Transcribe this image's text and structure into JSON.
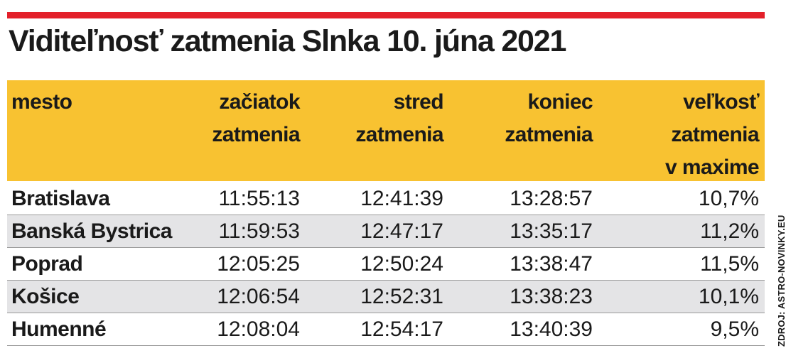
{
  "title": "Viditeľnosť zatmenia Slnka 10. júna 2021",
  "table": {
    "header": [
      [
        "mesto"
      ],
      [
        "začiatok",
        "zatmenia"
      ],
      [
        "stred",
        "zatmenia"
      ],
      [
        "koniec",
        "zatmenia"
      ],
      [
        "veľkosť",
        "zatmenia",
        "v maxime"
      ]
    ],
    "rows": [
      [
        "Bratislava",
        "11:55:13",
        "12:41:39",
        "13:28:57",
        "10,7%"
      ],
      [
        "Banská Bystrica",
        "11:59:53",
        "12:47:17",
        "13:35:17",
        "11,2%"
      ],
      [
        "Poprad",
        "12:05:25",
        "12:50:24",
        "13:38:47",
        "11,5%"
      ],
      [
        "Košice",
        "12:06:54",
        "12:52:31",
        "13:38:23",
        "10,1%"
      ],
      [
        "Humenné",
        "12:08:04",
        "12:54:17",
        "13:40:39",
        "9,5%"
      ]
    ]
  },
  "source": "ZDROJ: ASTRO-NOVINKY.EU"
}
